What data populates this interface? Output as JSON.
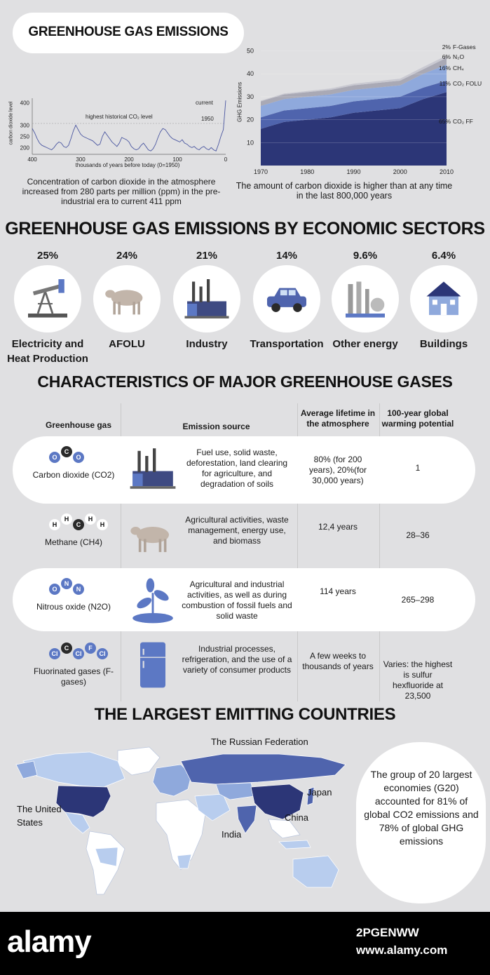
{
  "title": "GREENHOUSE GAS EMISSIONS",
  "co2_chart": {
    "ylabel": "carbon dioxide level",
    "xlabel": "thousands of years before today (0=1950)",
    "yticks": [
      "400",
      "300",
      "250",
      "200"
    ],
    "xticks": [
      "400",
      "300",
      "200",
      "100",
      "0"
    ],
    "annotation_high": "highest historical CO₂ level",
    "annotation_current": "current",
    "annotation_1950": "1950",
    "caption": "Concentration of carbon dioxide in the atmosphere increased from 280 parts per million (ppm) in the pre-industrial era to current 411 ppm"
  },
  "chart_data": [
    {
      "type": "line",
      "ylabel": "carbon dioxide level",
      "xlabel": "thousands of years before today (0=1950)",
      "xlim": [
        400,
        0
      ],
      "ylim": [
        170,
        420
      ],
      "x": [
        400,
        395,
        390,
        385,
        380,
        375,
        370,
        365,
        360,
        355,
        350,
        345,
        340,
        335,
        330,
        325,
        320,
        315,
        310,
        305,
        300,
        295,
        290,
        285,
        280,
        275,
        270,
        265,
        260,
        255,
        250,
        245,
        240,
        235,
        230,
        225,
        220,
        215,
        210,
        205,
        200,
        195,
        190,
        185,
        180,
        175,
        170,
        165,
        160,
        155,
        150,
        145,
        140,
        135,
        130,
        125,
        120,
        115,
        110,
        105,
        100,
        95,
        90,
        85,
        80,
        75,
        70,
        65,
        60,
        55,
        50,
        45,
        40,
        35,
        30,
        25,
        20,
        15,
        10,
        5,
        0
      ],
      "values": [
        285,
        265,
        240,
        220,
        210,
        205,
        200,
        195,
        190,
        200,
        215,
        225,
        220,
        205,
        200,
        210,
        240,
        275,
        300,
        280,
        260,
        250,
        245,
        240,
        235,
        230,
        220,
        210,
        215,
        250,
        270,
        255,
        240,
        225,
        215,
        205,
        220,
        245,
        240,
        235,
        225,
        205,
        195,
        190,
        195,
        210,
        220,
        205,
        190,
        185,
        195,
        215,
        245,
        270,
        285,
        280,
        265,
        250,
        240,
        235,
        230,
        225,
        235,
        220,
        215,
        205,
        200,
        205,
        195,
        190,
        200,
        205,
        195,
        190,
        200,
        190,
        185,
        215,
        250,
        280,
        410
      ]
    },
    {
      "type": "area",
      "ylabel": "GHG Emissions",
      "x": [
        1970,
        1975,
        1980,
        1985,
        1990,
        1995,
        2000,
        2005,
        2010
      ],
      "xlim": [
        1970,
        2010
      ],
      "ylim": [
        0,
        52
      ],
      "yticks": [
        "10",
        "20",
        "30",
        "40",
        "50"
      ],
      "xticks": [
        "1970",
        "1980",
        "1990",
        "2000",
        "2010"
      ],
      "series": [
        {
          "name": "CO₂ FF",
          "share": "65%",
          "values": [
            16,
            19,
            20,
            21,
            23,
            24,
            25,
            29,
            32
          ]
        },
        {
          "name": "CO₂ FOLU",
          "share": "11%",
          "values": [
            5,
            5,
            5,
            5,
            5,
            5,
            5,
            5,
            5
          ]
        },
        {
          "name": "CH₄",
          "share": "16%",
          "values": [
            5,
            5,
            5,
            5,
            5,
            5,
            5,
            6,
            7
          ]
        },
        {
          "name": "N₂O",
          "share": "6%",
          "values": [
            2,
            2,
            2,
            2,
            2,
            2,
            2,
            2,
            3
          ]
        },
        {
          "name": "F-Gases",
          "share": "2%",
          "values": [
            0.3,
            0.4,
            0.5,
            0.6,
            0.7,
            0.8,
            0.9,
            1,
            1
          ]
        }
      ]
    }
  ],
  "ghg_caption": "The amount of carbon dioxide is higher than at any time in the last 800,000 years",
  "sectors_title": "GREENHOUSE GAS EMISSIONS BY ECONOMIC SECTORS",
  "sectors": [
    {
      "pct": "25%",
      "label": "Electricity and Heat Production",
      "icon": "pumpjack-icon"
    },
    {
      "pct": "24%",
      "label": "AFOLU",
      "icon": "cow-icon"
    },
    {
      "pct": "21%",
      "label": "Industry",
      "icon": "factory-icon"
    },
    {
      "pct": "14%",
      "label": "Transportation",
      "icon": "car-icon"
    },
    {
      "pct": "9.6%",
      "label": "Other energy",
      "icon": "refinery-icon"
    },
    {
      "pct": "6.4%",
      "label": "Buildings",
      "icon": "house-icon"
    }
  ],
  "gases_title": "CHARACTERISTICS OF MAJOR GREENHOUSE GASES",
  "table_headers": {
    "gas": "Greenhouse gas",
    "source": "Emission source",
    "lifetime": "Average lifetime in the atmosphere",
    "gwp": "100-year global warming potential"
  },
  "gases": [
    {
      "name": "Carbon dioxide (CO2)",
      "molecule": [
        "O",
        "C",
        "O"
      ],
      "source": "Fuel use, solid waste, deforestation, land clearing for agriculture, and degradation of soils",
      "lifetime": "80% (for 200 years), 20%(for 30,000 years)",
      "gwp": "1",
      "icon": "factory-icon"
    },
    {
      "name": "Methane (CH4)",
      "molecule": [
        "H",
        "H",
        "C",
        "H",
        "H"
      ],
      "source": "Agricultural activities, waste management, energy use, and biomass",
      "lifetime": "12,4 years",
      "gwp": "28–36",
      "icon": "cow-icon"
    },
    {
      "name": "Nitrous oxide (N2O)",
      "molecule": [
        "O",
        "N",
        "N"
      ],
      "source": "Agricultural and industrial activities, as well as during combustion of fossil fuels and solid waste",
      "lifetime": "114 years",
      "gwp": "265–298",
      "icon": "plant-icon"
    },
    {
      "name": "Fluorinated gases (F-gases)",
      "molecule": [
        "Cl",
        "C",
        "Cl",
        "F",
        "Cl"
      ],
      "source": "Industrial processes, refrigeration, and the use of a variety of consumer products",
      "lifetime": "A few weeks to thousands of years",
      "gwp": "Varies: the highest is sulfur hexfluoride at 23,500",
      "icon": "fridge-icon"
    }
  ],
  "countries_title": "THE LARGEST EMITTING COUNTRIES",
  "map_labels": {
    "russia": "The Russian Federation",
    "us": "The United States",
    "japan": "Japan",
    "china": "China",
    "india": "India"
  },
  "g20_text": "The group of 20 largest economies (G20) accounted for 81% of global CO2 emissions and 78% of global GHG emissions",
  "footer": {
    "brand": "alamy",
    "image_code": "2PGENWW",
    "url": "www.alamy.com"
  },
  "colors": {
    "dark_navy": "#2c3677",
    "mid_blue": "#4f64ad",
    "light_blue": "#8fa9dc",
    "pale_blue": "#b8cdee",
    "icon_blue": "#5c78c4"
  }
}
